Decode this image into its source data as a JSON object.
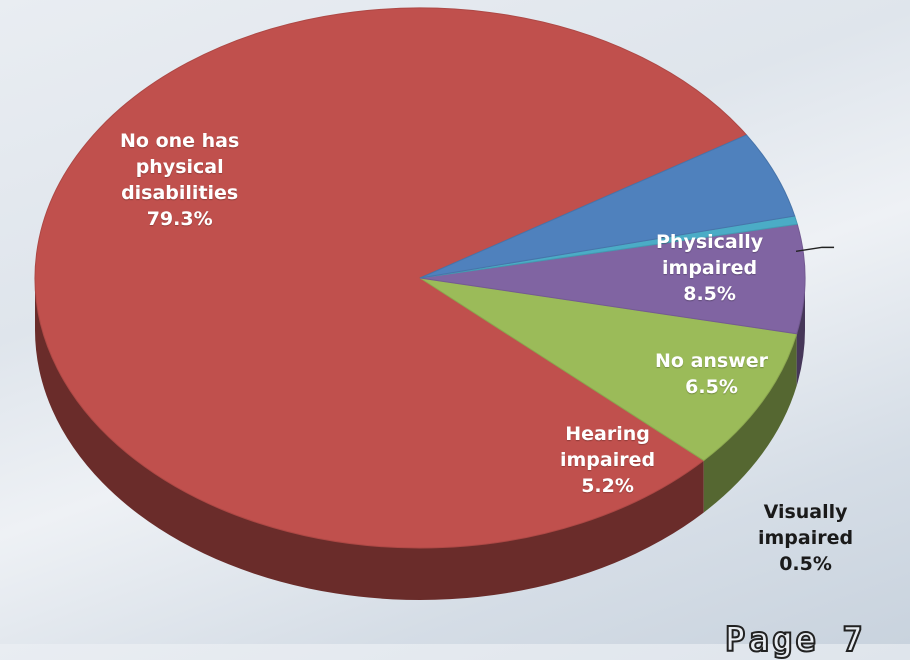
{
  "chart_data": {
    "type": "pie",
    "title": "",
    "slices": [
      {
        "label_lines": [
          "No one has",
          "physical",
          "disabilities",
          "79.3%"
        ],
        "value": 79.3,
        "color": "#c0504d"
      },
      {
        "label_lines": [
          "Physically",
          "impaired",
          "8.5%"
        ],
        "value": 8.5,
        "color": "#9bbb59"
      },
      {
        "label_lines": [
          "No answer",
          "6.5%"
        ],
        "value": 6.5,
        "color": "#8064a2"
      },
      {
        "label_lines": [
          "Visually",
          "impaired",
          "0.5%"
        ],
        "value": 0.5,
        "color": "#4bacc6"
      },
      {
        "label_lines": [
          "Hearing",
          "impaired",
          "5.2%"
        ],
        "value": 5.2,
        "color": "#4f81bd"
      }
    ]
  },
  "footer_text": "Page 7"
}
